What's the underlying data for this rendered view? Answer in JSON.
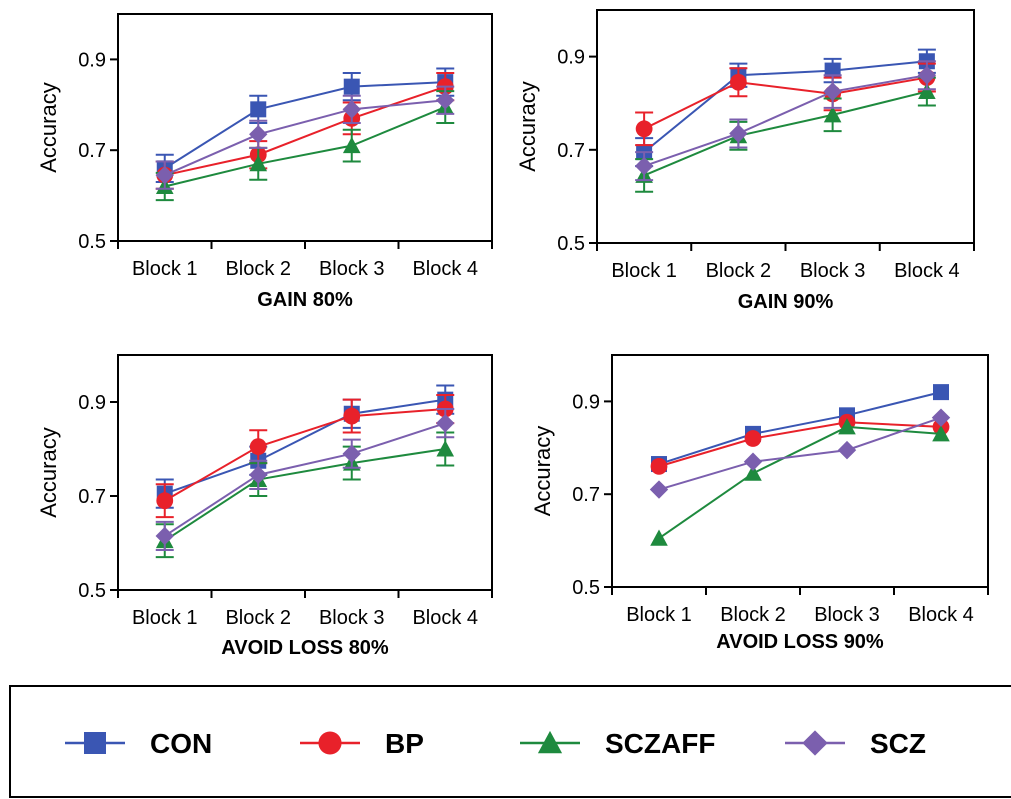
{
  "legend": {
    "items": [
      {
        "label": "CON",
        "color": "#3a56b3",
        "marker": "square"
      },
      {
        "label": "BP",
        "color": "#e8212a",
        "marker": "circle"
      },
      {
        "label": "SCZAFF",
        "color": "#1e8a3e",
        "marker": "triangle"
      },
      {
        "label": "SCZ",
        "color": "#7b5fae",
        "marker": "diamond"
      }
    ]
  },
  "chart_data": [
    {
      "type": "line",
      "title": "GAIN 80%",
      "ylabel": "Accuracy",
      "categories": [
        "Block 1",
        "Block 2",
        "Block 3",
        "Block 4"
      ],
      "ylim": [
        0.5,
        1.0
      ],
      "yticks": [
        "0.5",
        "0.7",
        "0.9"
      ],
      "error_bars": true,
      "series": [
        {
          "name": "CON",
          "values": [
            0.66,
            0.79,
            0.84,
            0.85
          ],
          "errors": [
            0.03,
            0.03,
            0.03,
            0.03
          ]
        },
        {
          "name": "BP",
          "values": [
            0.645,
            0.69,
            0.77,
            0.84
          ],
          "errors": [
            0.03,
            0.03,
            0.035,
            0.03
          ]
        },
        {
          "name": "SCZAFF",
          "values": [
            0.62,
            0.67,
            0.71,
            0.795
          ],
          "errors": [
            0.03,
            0.035,
            0.035,
            0.035
          ]
        },
        {
          "name": "SCZ",
          "values": [
            0.645,
            0.735,
            0.79,
            0.81
          ],
          "errors": [
            0.03,
            0.03,
            0.03,
            0.03
          ]
        }
      ]
    },
    {
      "type": "line",
      "title": "GAIN 90%",
      "ylabel": "Accuracy",
      "categories": [
        "Block 1",
        "Block 2",
        "Block 3",
        "Block 4"
      ],
      "ylim": [
        0.5,
        1.0
      ],
      "yticks": [
        "0.5",
        "0.7",
        "0.9"
      ],
      "error_bars": true,
      "series": [
        {
          "name": "CON",
          "values": [
            0.695,
            0.86,
            0.87,
            0.89
          ],
          "errors": [
            0.03,
            0.025,
            0.025,
            0.025
          ]
        },
        {
          "name": "BP",
          "values": [
            0.745,
            0.845,
            0.82,
            0.855
          ],
          "errors": [
            0.035,
            0.03,
            0.035,
            0.03
          ]
        },
        {
          "name": "SCZAFF",
          "values": [
            0.645,
            0.73,
            0.775,
            0.825
          ],
          "errors": [
            0.035,
            0.03,
            0.035,
            0.03
          ]
        },
        {
          "name": "SCZ",
          "values": [
            0.665,
            0.735,
            0.825,
            0.86
          ],
          "errors": [
            0.03,
            0.03,
            0.035,
            0.03
          ]
        }
      ]
    },
    {
      "type": "line",
      "title": "AVOID LOSS 80%",
      "ylabel": "Accuracy",
      "categories": [
        "Block 1",
        "Block 2",
        "Block 3",
        "Block 4"
      ],
      "ylim": [
        0.5,
        1.0
      ],
      "yticks": [
        "0.5",
        "0.7",
        "0.9"
      ],
      "error_bars": true,
      "series": [
        {
          "name": "CON",
          "values": [
            0.705,
            0.775,
            0.875,
            0.905
          ],
          "errors": [
            0.03,
            0.03,
            0.03,
            0.03
          ]
        },
        {
          "name": "BP",
          "values": [
            0.69,
            0.805,
            0.87,
            0.885
          ],
          "errors": [
            0.035,
            0.035,
            0.035,
            0.03
          ]
        },
        {
          "name": "SCZAFF",
          "values": [
            0.605,
            0.735,
            0.77,
            0.8
          ],
          "errors": [
            0.035,
            0.035,
            0.035,
            0.035
          ]
        },
        {
          "name": "SCZ",
          "values": [
            0.615,
            0.745,
            0.79,
            0.855
          ],
          "errors": [
            0.03,
            0.03,
            0.03,
            0.03
          ]
        }
      ]
    },
    {
      "type": "line",
      "title": "AVOID LOSS 90%",
      "ylabel": "Accuracy",
      "categories": [
        "Block 1",
        "Block 2",
        "Block 3",
        "Block 4"
      ],
      "ylim": [
        0.5,
        1.0
      ],
      "yticks": [
        "0.5",
        "0.7",
        "0.9"
      ],
      "error_bars": false,
      "series": [
        {
          "name": "CON",
          "values": [
            0.765,
            0.83,
            0.87,
            0.92
          ]
        },
        {
          "name": "BP",
          "values": [
            0.76,
            0.82,
            0.855,
            0.845
          ]
        },
        {
          "name": "SCZAFF",
          "values": [
            0.605,
            0.745,
            0.845,
            0.83
          ]
        },
        {
          "name": "SCZ",
          "values": [
            0.71,
            0.77,
            0.795,
            0.865
          ]
        }
      ]
    }
  ]
}
